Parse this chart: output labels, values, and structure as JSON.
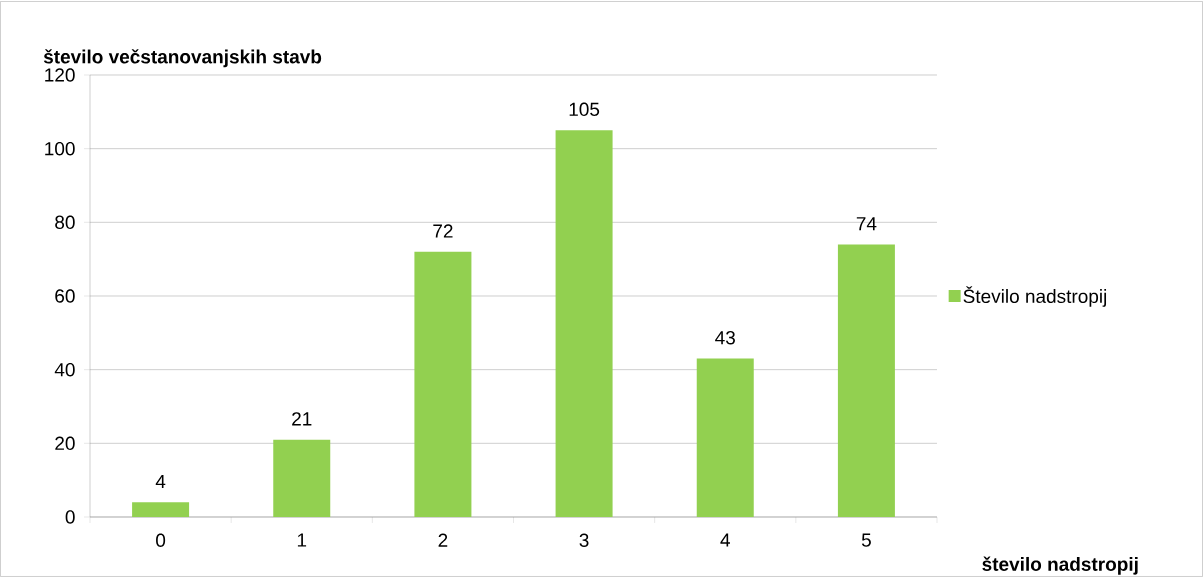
{
  "chart_data": {
    "type": "bar",
    "xlabel": "število nadstropij",
    "ylabel": "število večstanovanjskih stavb",
    "categories": [
      "0",
      "1",
      "2",
      "3",
      "4",
      "5"
    ],
    "series": [
      {
        "name": "Število nadstropij",
        "color": "#92d050",
        "values": [
          4,
          21,
          72,
          105,
          43,
          74
        ]
      }
    ],
    "ylim": [
      0,
      120
    ],
    "yticks": [
      0,
      20,
      40,
      60,
      80,
      100,
      120
    ],
    "grid": "y",
    "legend": "right",
    "data_labels": true
  }
}
